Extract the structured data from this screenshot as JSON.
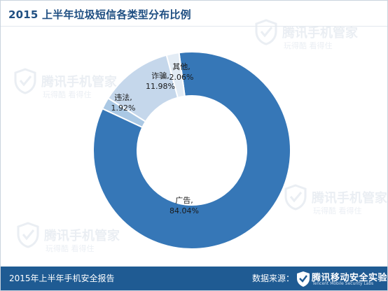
{
  "header": {
    "title": "2015 上半年垃圾短信各类型分布比例"
  },
  "footer": {
    "report_name": "2015年上半年手机安全报告",
    "source_label": "数据来源：",
    "source_org": "腾讯移动安全实验室",
    "source_org_en": "Tencent Mobile Security Labs"
  },
  "watermark": {
    "name": "腾讯手机管家",
    "slogan": "玩得酷  看得住"
  },
  "colors": {
    "accent": "#1f5b93",
    "title": "#1f4f82",
    "ad": "#3677b7",
    "fraud": "#c5d7eb",
    "illegal": "#aac8e4",
    "other": "#e3ecf5"
  },
  "chart_data": {
    "type": "donut",
    "title": "2015 上半年垃圾短信各类型分布比例",
    "series": [
      {
        "label": "广告",
        "value": 84.04,
        "value_label": "84.04%",
        "color": "#3677b7"
      },
      {
        "label": "违法",
        "value": 1.92,
        "value_label": "1.92%",
        "color": "#aac8e4"
      },
      {
        "label": "诈骗",
        "value": 11.98,
        "value_label": "11.98%",
        "color": "#c5d7eb"
      },
      {
        "label": "其他",
        "value": 2.06,
        "value_label": "2.06%",
        "color": "#e3ecf5"
      }
    ],
    "legend": "none"
  }
}
